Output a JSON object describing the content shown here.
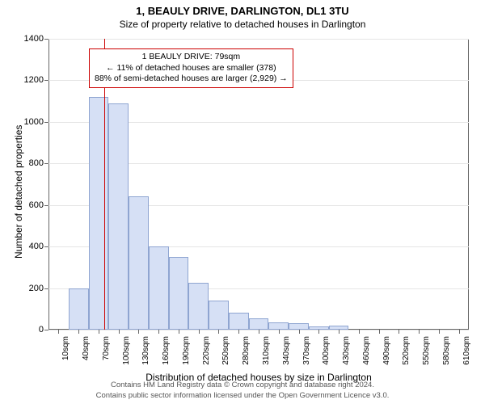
{
  "title": "1, BEAULY DRIVE, DARLINGTON, DL1 3TU",
  "subtitle": "Size of property relative to detached houses in Darlington",
  "chart": {
    "type": "histogram",
    "y_label": "Number of detached properties",
    "x_label": "Distribution of detached houses by size in Darlington",
    "ylim_max": 1400,
    "ytick_step": 200,
    "yticks": [
      0,
      200,
      400,
      600,
      800,
      1000,
      1200,
      1400
    ],
    "x_categories": [
      "10sqm",
      "40sqm",
      "70sqm",
      "100sqm",
      "130sqm",
      "160sqm",
      "190sqm",
      "220sqm",
      "250sqm",
      "280sqm",
      "310sqm",
      "340sqm",
      "370sqm",
      "400sqm",
      "430sqm",
      "460sqm",
      "490sqm",
      "520sqm",
      "550sqm",
      "580sqm",
      "610sqm"
    ],
    "values": [
      0,
      200,
      1120,
      1090,
      640,
      400,
      350,
      225,
      140,
      80,
      55,
      35,
      30,
      15,
      18,
      0,
      0,
      0,
      0,
      0,
      0
    ],
    "bar_fill": "#d6e0f5",
    "bar_border": "#8fa5d1",
    "bar_width_ratio": 1.0,
    "grid_color": "#e5e5e5",
    "axis_color": "#666666",
    "background_color": "#ffffff",
    "marker": {
      "position_sqm": 79,
      "color": "#cc0000"
    },
    "annotation": {
      "border_color": "#cc0000",
      "background": "#ffffff",
      "lines": [
        "1 BEAULY DRIVE: 79sqm",
        "← 11% of detached houses are smaller (378)",
        "88% of semi-detached houses are larger (2,929) →"
      ],
      "fontsize": 10.5
    }
  },
  "footer": {
    "line1": "Contains HM Land Registry data © Crown copyright and database right 2024.",
    "line2": "Contains public sector information licensed under the Open Government Licence v3.0."
  }
}
